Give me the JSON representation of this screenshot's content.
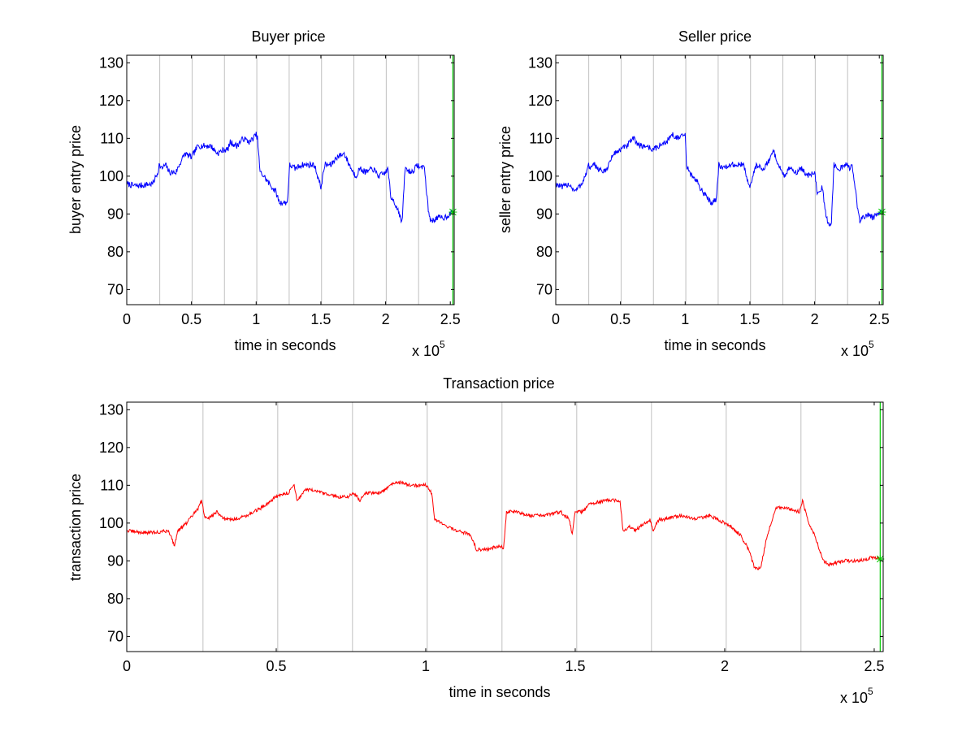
{
  "chart_data": [
    {
      "type": "line",
      "title": "Buyer price",
      "xlabel": "time in seconds",
      "ylabel": "buyer entry price",
      "x_multiplier_label": "x 10",
      "x_multiplier_exp": "5",
      "xlim": [
        0,
        2.53
      ],
      "ylim": [
        66,
        132
      ],
      "xticks": [
        0,
        0.5,
        1,
        1.5,
        2,
        2.5
      ],
      "xtick_labels": [
        "0",
        "0.5",
        "1",
        "1.5",
        "2",
        "2.5"
      ],
      "yticks": [
        70,
        80,
        90,
        100,
        110,
        120,
        130
      ],
      "ytick_labels": [
        "70",
        "80",
        "90",
        "100",
        "110",
        "120",
        "130"
      ],
      "vertical_gridlines_x": [
        0.255,
        0.505,
        0.755,
        1.005,
        1.255,
        1.505,
        1.755,
        2.005,
        2.255
      ],
      "gridline_color": "#c0c0c0",
      "end_marker": {
        "x": 2.52,
        "y": 90.5,
        "color": "#00cc00"
      },
      "series": [
        {
          "color": "#0000ff",
          "noise": 0.8,
          "x": [
            0,
            0.05,
            0.1,
            0.2,
            0.24,
            0.25,
            0.27,
            0.3,
            0.33,
            0.38,
            0.42,
            0.45,
            0.5,
            0.55,
            0.6,
            0.65,
            0.7,
            0.75,
            0.78,
            0.8,
            0.85,
            0.9,
            0.95,
            1.0,
            1.01,
            1.03,
            1.06,
            1.1,
            1.15,
            1.18,
            1.2,
            1.24,
            1.26,
            1.3,
            1.35,
            1.45,
            1.5,
            1.53,
            1.58,
            1.62,
            1.68,
            1.72,
            1.75,
            1.77,
            1.8,
            1.85,
            1.9,
            1.95,
            2.0,
            2.02,
            2.04,
            2.06,
            2.08,
            2.1,
            2.12,
            2.13,
            2.15,
            2.2,
            2.25,
            2.27,
            2.29,
            2.3,
            2.33,
            2.35,
            2.4,
            2.45,
            2.5,
            2.52
          ],
          "y": [
            98,
            97.5,
            97.5,
            98,
            101,
            103,
            102,
            103,
            101,
            101,
            104,
            106,
            105,
            108,
            108,
            108,
            106,
            107,
            107,
            109,
            108,
            110,
            109,
            111,
            110,
            101,
            100,
            98,
            96,
            93,
            93,
            93,
            103,
            102,
            103,
            103,
            97,
            103,
            103,
            105,
            106,
            103,
            101,
            100,
            102,
            101,
            102,
            100,
            101,
            102,
            94,
            94,
            92,
            91,
            88,
            89,
            102,
            101,
            103,
            102,
            103,
            102,
            91,
            88,
            89,
            89,
            90,
            91
          ]
        }
      ]
    },
    {
      "type": "line",
      "title": "Seller price",
      "xlabel": "time in seconds",
      "ylabel": "seller entry price",
      "x_multiplier_label": "x 10",
      "x_multiplier_exp": "5",
      "xlim": [
        0,
        2.53
      ],
      "ylim": [
        66,
        132
      ],
      "xticks": [
        0,
        0.5,
        1,
        1.5,
        2,
        2.5
      ],
      "xtick_labels": [
        "0",
        "0.5",
        "1",
        "1.5",
        "2",
        "2.5"
      ],
      "yticks": [
        70,
        80,
        90,
        100,
        110,
        120,
        130
      ],
      "ytick_labels": [
        "70",
        "80",
        "90",
        "100",
        "110",
        "120",
        "130"
      ],
      "vertical_gridlines_x": [
        0.255,
        0.505,
        0.755,
        1.005,
        1.255,
        1.505,
        1.755,
        2.005,
        2.255
      ],
      "gridline_color": "#c0c0c0",
      "end_marker": {
        "x": 2.52,
        "y": 90.5,
        "color": "#00cc00"
      },
      "series": [
        {
          "color": "#0000ff",
          "noise": 0.8,
          "x": [
            0,
            0.05,
            0.1,
            0.15,
            0.2,
            0.24,
            0.25,
            0.27,
            0.3,
            0.33,
            0.38,
            0.42,
            0.45,
            0.5,
            0.55,
            0.6,
            0.65,
            0.7,
            0.75,
            0.8,
            0.85,
            0.9,
            0.95,
            1.0,
            1.01,
            1.03,
            1.06,
            1.1,
            1.15,
            1.18,
            1.2,
            1.24,
            1.26,
            1.3,
            1.35,
            1.45,
            1.5,
            1.55,
            1.6,
            1.65,
            1.68,
            1.72,
            1.75,
            1.77,
            1.8,
            1.85,
            1.9,
            1.95,
            2.0,
            2.02,
            2.06,
            2.08,
            2.1,
            2.12,
            2.13,
            2.15,
            2.2,
            2.25,
            2.27,
            2.29,
            2.3,
            2.33,
            2.35,
            2.4,
            2.45,
            2.5,
            2.52
          ],
          "y": [
            98,
            97,
            98,
            96,
            98,
            101,
            103,
            102,
            103,
            102,
            101,
            104,
            106,
            107,
            108,
            110,
            108,
            108,
            107,
            108,
            109,
            111,
            110,
            111,
            103,
            101,
            100,
            98,
            95,
            94,
            93,
            94,
            103,
            102,
            103,
            103,
            97,
            103,
            102,
            104,
            107,
            103,
            101,
            100,
            102,
            101,
            102,
            100,
            101,
            96,
            97,
            91,
            88,
            87,
            88,
            103,
            102,
            103,
            102,
            103,
            101,
            92,
            88,
            90,
            89,
            90,
            91
          ]
        }
      ]
    },
    {
      "type": "line",
      "title": "Transaction price",
      "xlabel": "time in seconds",
      "ylabel": "transaction price",
      "x_multiplier_label": "x 10",
      "x_multiplier_exp": "5",
      "xlim": [
        0,
        2.53
      ],
      "ylim": [
        66,
        132
      ],
      "xticks": [
        0,
        0.5,
        1,
        1.5,
        2,
        2.5
      ],
      "xtick_labels": [
        "0",
        "0.5",
        "1",
        "1.5",
        "2",
        "2.5"
      ],
      "yticks": [
        70,
        80,
        90,
        100,
        110,
        120,
        130
      ],
      "ytick_labels": [
        "70",
        "80",
        "90",
        "100",
        "110",
        "120",
        "130"
      ],
      "vertical_gridlines_x": [
        0.255,
        0.505,
        0.755,
        1.005,
        1.255,
        1.505,
        1.755,
        2.005,
        2.255
      ],
      "gridline_color": "#c0c0c0",
      "end_marker": {
        "x": 2.52,
        "y": 90.5,
        "color": "#00cc00"
      },
      "series": [
        {
          "color": "#ff0000",
          "noise": 0.45,
          "x": [
            0,
            0.05,
            0.1,
            0.14,
            0.16,
            0.17,
            0.2,
            0.24,
            0.25,
            0.26,
            0.27,
            0.3,
            0.33,
            0.36,
            0.4,
            0.45,
            0.5,
            0.54,
            0.56,
            0.57,
            0.6,
            0.65,
            0.7,
            0.74,
            0.76,
            0.78,
            0.8,
            0.85,
            0.9,
            0.95,
            1.0,
            1.02,
            1.03,
            1.05,
            1.1,
            1.15,
            1.17,
            1.2,
            1.25,
            1.26,
            1.27,
            1.3,
            1.35,
            1.4,
            1.45,
            1.48,
            1.49,
            1.5,
            1.52,
            1.55,
            1.6,
            1.65,
            1.66,
            1.68,
            1.7,
            1.75,
            1.76,
            1.78,
            1.8,
            1.85,
            1.9,
            1.95,
            2.0,
            2.02,
            2.05,
            2.08,
            2.1,
            2.12,
            2.14,
            2.17,
            2.2,
            2.25,
            2.26,
            2.28,
            2.3,
            2.33,
            2.35,
            2.4,
            2.45,
            2.5,
            2.52
          ],
          "y": [
            98,
            97.5,
            97.5,
            98,
            94,
            98,
            100,
            104,
            106,
            102,
            101,
            103,
            101,
            101,
            102,
            104,
            107,
            108,
            110,
            106,
            109,
            108,
            107,
            107,
            108,
            106,
            108,
            108,
            111,
            110,
            110,
            108,
            101,
            100,
            98,
            97,
            93,
            93,
            94,
            93,
            103,
            103,
            102,
            102,
            103,
            101,
            97,
            103,
            103,
            105,
            106,
            106,
            98,
            99,
            98,
            101,
            98,
            101,
            101,
            102,
            101,
            102,
            100,
            99,
            97,
            93,
            88,
            88,
            96,
            104,
            104,
            103,
            106,
            100,
            97,
            90,
            89,
            90,
            90,
            91,
            90.5
          ]
        }
      ]
    }
  ]
}
